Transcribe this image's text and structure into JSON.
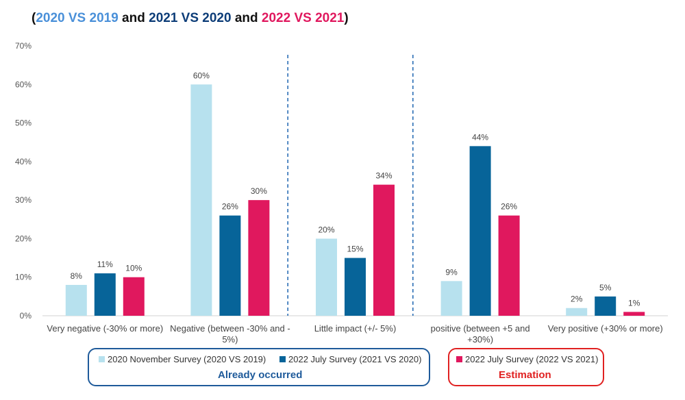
{
  "title_parts": {
    "open": "(",
    "p1": "2020 VS 2019",
    "and1": " and ",
    "p2": "2021 VS 2020",
    "and2": " and ",
    "p3": "2022 VS 2021",
    "close": ")"
  },
  "colors": {
    "s1": "#b7e1ee",
    "s2": "#076499",
    "s3": "#e0185e",
    "title1": "#4a90d9",
    "title2": "#0d3d78",
    "title3": "#e0185e",
    "divider": "#2a6db5",
    "occurred_box": "#1e5a9a",
    "estimation_box": "#e02020"
  },
  "legend": {
    "occurred_label": "Already occurred",
    "estimation_label": "Estimation"
  },
  "chart_data": {
    "type": "bar",
    "title": "(2020 VS 2019 and 2021 VS 2020 and 2022 VS 2021)",
    "categories": [
      [
        "Very negative (-30% or more)"
      ],
      [
        "Negative (between -30% and -",
        "5%)"
      ],
      [
        "Little impact (+/- 5%)"
      ],
      [
        "positive (between +5 and",
        "+30%)"
      ],
      [
        "Very positive (+30% or more)"
      ]
    ],
    "series": [
      {
        "name": "2020 November Survey (2020 VS 2019)",
        "values": [
          8,
          60,
          20,
          9,
          2
        ]
      },
      {
        "name": "2022 July Survey (2021 VS 2020)",
        "values": [
          11,
          26,
          15,
          44,
          5
        ]
      },
      {
        "name": "2022 July Survey (2022 VS 2021)",
        "values": [
          10,
          30,
          34,
          26,
          1
        ]
      }
    ],
    "ylim": [
      0,
      70
    ],
    "yticks": [
      0,
      10,
      20,
      30,
      40,
      50,
      60,
      70
    ],
    "tick_suffix": "%",
    "data_labels": [
      [
        "8%",
        "60%",
        "20%",
        "9%",
        "2%"
      ],
      [
        "11%",
        "26%",
        "15%",
        "44%",
        "5%"
      ],
      [
        "10%",
        "30%",
        "34%",
        "26%",
        "1%"
      ]
    ],
    "grid": false,
    "legend_position": "bottom"
  }
}
